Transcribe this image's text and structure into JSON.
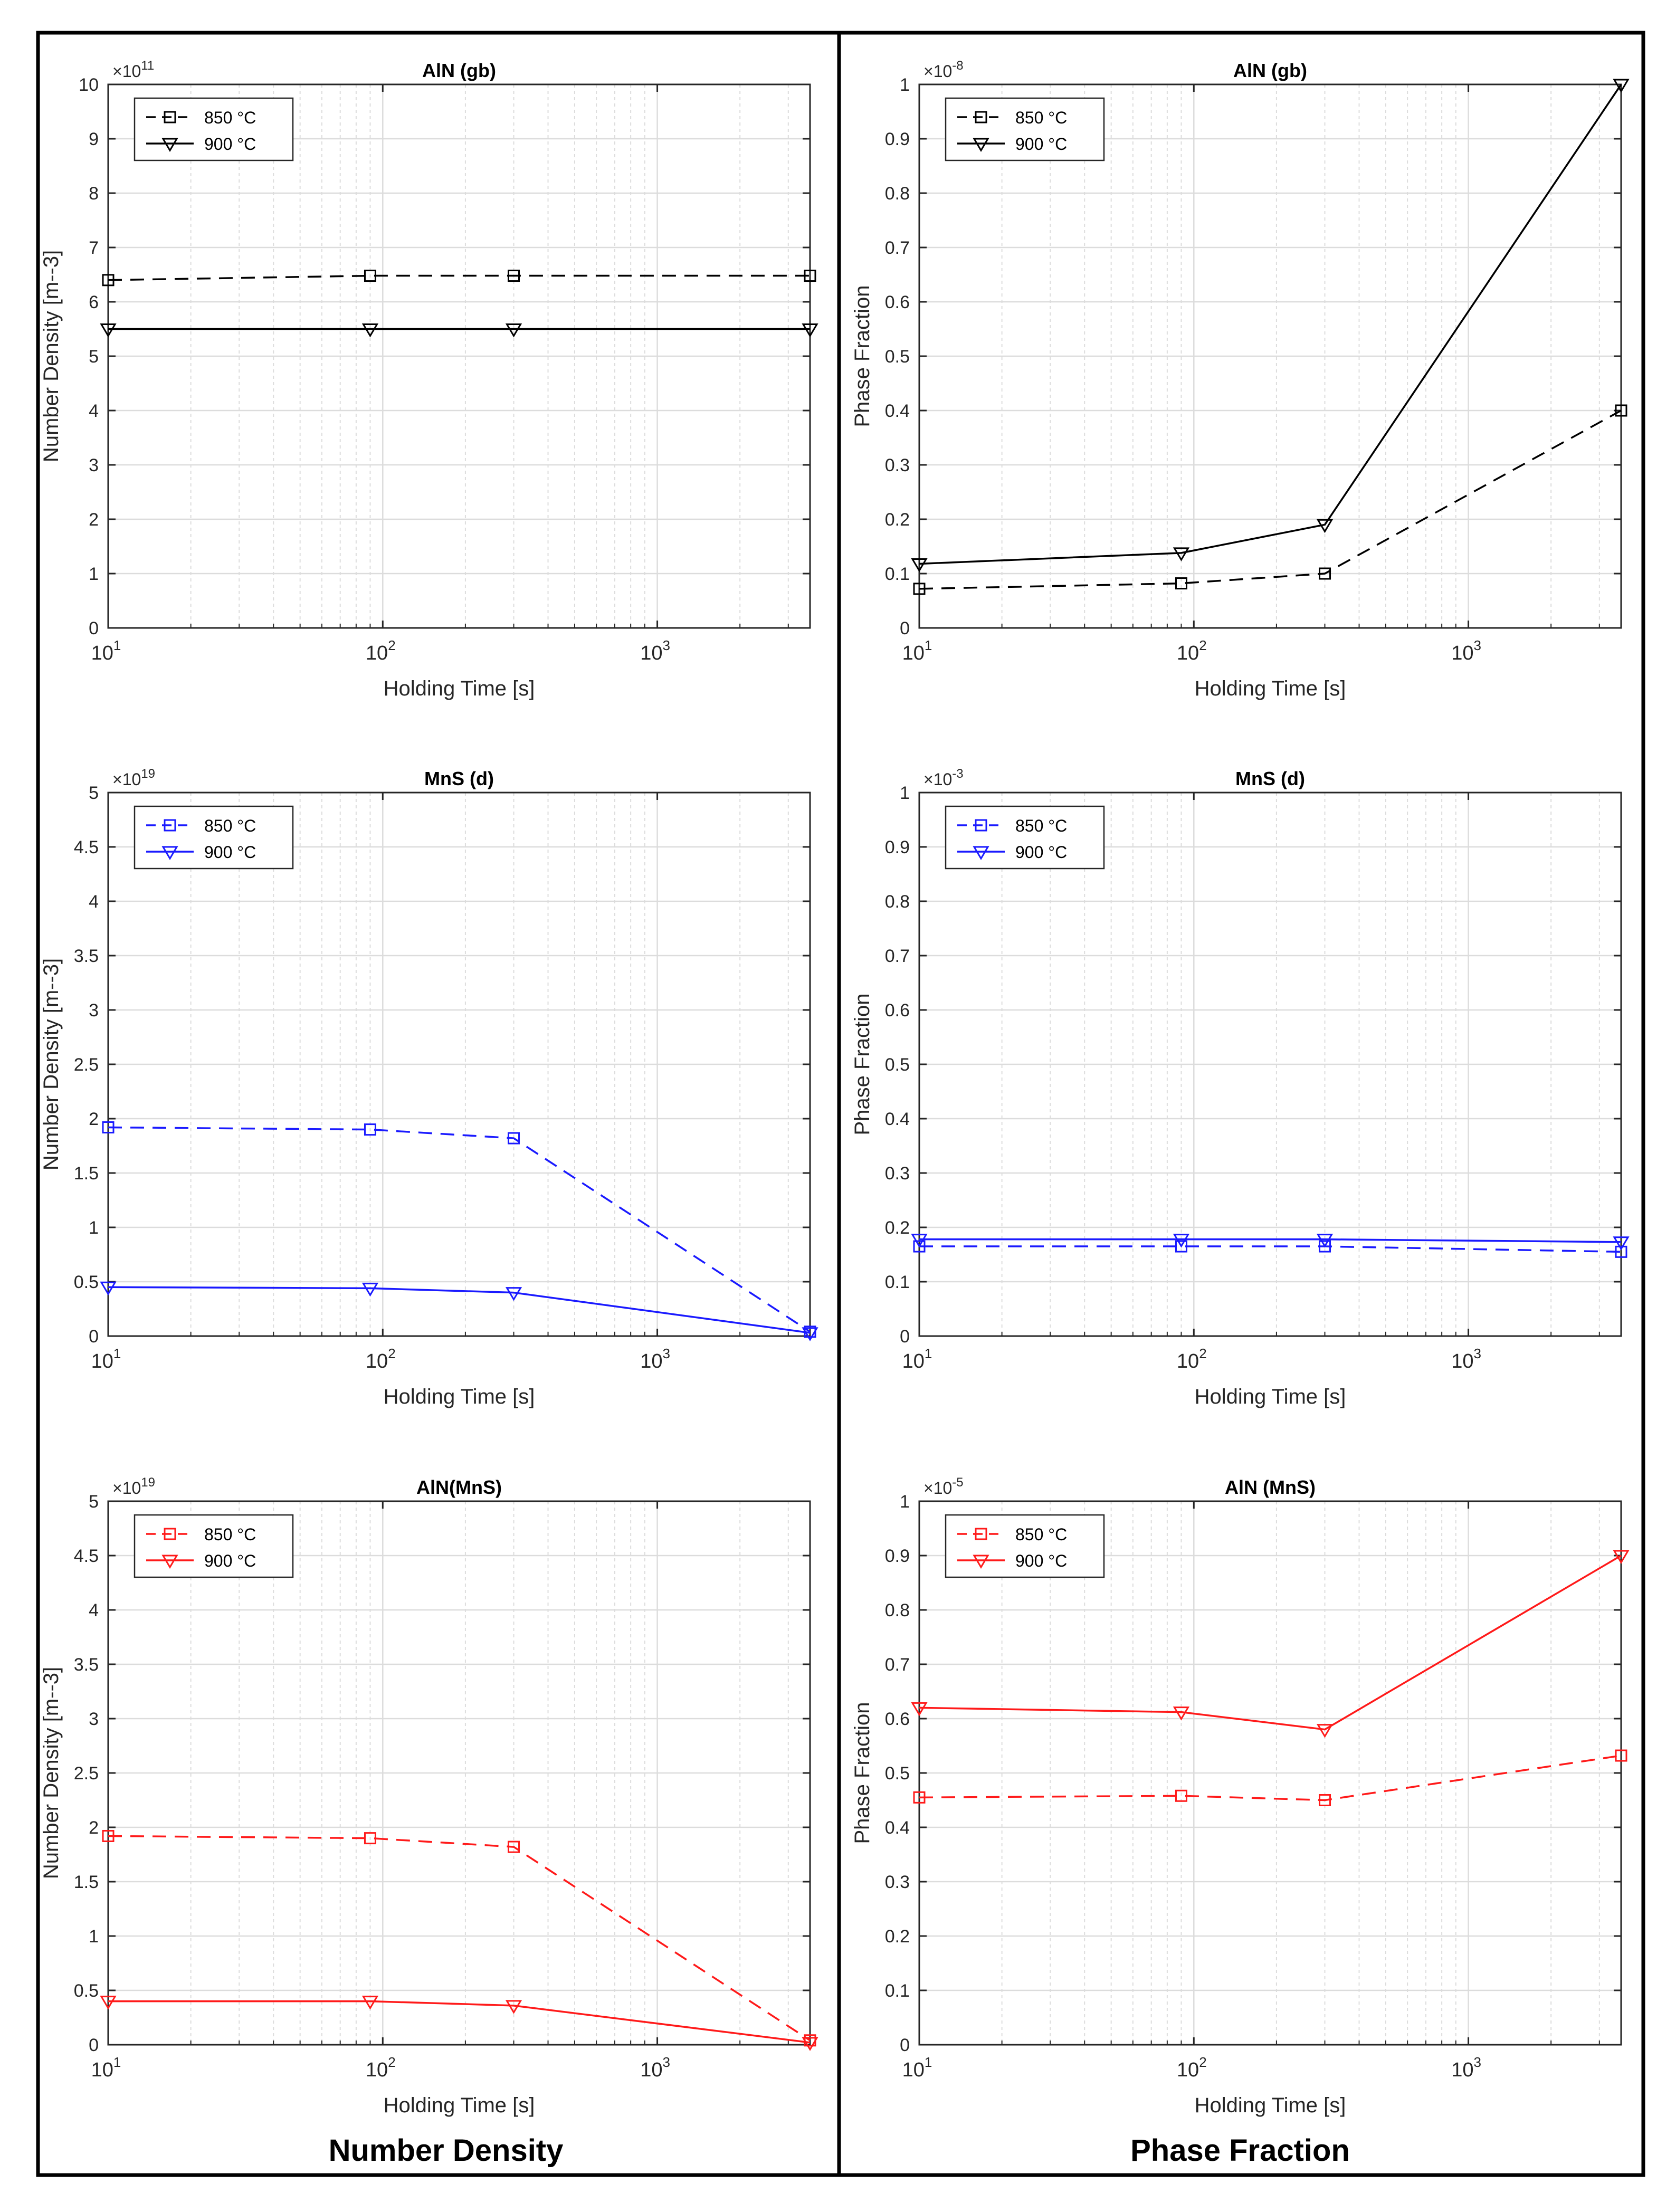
{
  "columns": [
    {
      "caption": "Number Density"
    },
    {
      "caption": "Phase Fraction"
    }
  ],
  "colors": {
    "black": "#000000",
    "blue": "#1a1aff",
    "red": "#ff1a1a",
    "grid": "#dcdcdc"
  },
  "chart_data": [
    {
      "type": "line",
      "title": "AlN (gb)",
      "xlabel": "Holding Time [s]",
      "ylabel": "Number Density [m--3]",
      "x_scale": "log",
      "xlim": [
        10,
        3600
      ],
      "ylim": [
        0,
        10
      ],
      "y_exponent": "×10",
      "y_exponent_power": "11",
      "x_ticks": [
        {
          "base": "10",
          "exp": "1",
          "value": 10
        },
        {
          "base": "10",
          "exp": "2",
          "value": 100
        },
        {
          "base": "10",
          "exp": "3",
          "value": 1000
        }
      ],
      "y_ticks": [
        "0",
        "1",
        "2",
        "3",
        "4",
        "5",
        "6",
        "7",
        "8",
        "9",
        "10"
      ],
      "color": "black",
      "legend": "top-left",
      "x": [
        10,
        90,
        300,
        3600
      ],
      "series": [
        {
          "name": "850 °C",
          "marker": "square",
          "dash": true,
          "values": [
            6.4,
            6.48,
            6.48,
            6.48
          ]
        },
        {
          "name": "900 °C",
          "marker": "triangle-down",
          "dash": false,
          "values": [
            5.5,
            5.5,
            5.5,
            5.5
          ]
        }
      ]
    },
    {
      "type": "line",
      "title": "AlN (gb)",
      "xlabel": "Holding Time [s]",
      "ylabel": "Phase Fraction",
      "x_scale": "log",
      "xlim": [
        10,
        3600
      ],
      "ylim": [
        0,
        1
      ],
      "y_exponent": "×10",
      "y_exponent_power": "-8",
      "x_ticks": [
        {
          "base": "10",
          "exp": "1",
          "value": 10
        },
        {
          "base": "10",
          "exp": "2",
          "value": 100
        },
        {
          "base": "10",
          "exp": "3",
          "value": 1000
        }
      ],
      "y_ticks": [
        "0",
        "0.1",
        "0.2",
        "0.3",
        "0.4",
        "0.5",
        "0.6",
        "0.7",
        "0.8",
        "0.9",
        "1"
      ],
      "color": "black",
      "legend": "top-left",
      "x": [
        10,
        90,
        300,
        3600
      ],
      "series": [
        {
          "name": "850 °C",
          "marker": "square",
          "dash": true,
          "values": [
            0.072,
            0.082,
            0.1,
            0.4
          ]
        },
        {
          "name": "900 °C",
          "marker": "triangle-down",
          "dash": false,
          "values": [
            0.118,
            0.138,
            0.19,
            1.0
          ]
        }
      ]
    },
    {
      "type": "line",
      "title": "MnS (d)",
      "xlabel": "Holding Time [s]",
      "ylabel": "Number Density [m--3]",
      "x_scale": "log",
      "xlim": [
        10,
        3600
      ],
      "ylim": [
        0,
        5
      ],
      "y_exponent": "×10",
      "y_exponent_power": "19",
      "x_ticks": [
        {
          "base": "10",
          "exp": "1",
          "value": 10
        },
        {
          "base": "10",
          "exp": "2",
          "value": 100
        },
        {
          "base": "10",
          "exp": "3",
          "value": 1000
        }
      ],
      "y_ticks": [
        "0",
        "0.5",
        "1",
        "1.5",
        "2",
        "2.5",
        "3",
        "3.5",
        "4",
        "4.5",
        "5"
      ],
      "color": "blue",
      "legend": "top-left",
      "x": [
        10,
        90,
        300,
        3600
      ],
      "series": [
        {
          "name": "850 °C",
          "marker": "square",
          "dash": true,
          "values": [
            1.92,
            1.9,
            1.82,
            0.04
          ]
        },
        {
          "name": "900 °C",
          "marker": "triangle-down",
          "dash": false,
          "values": [
            0.45,
            0.44,
            0.4,
            0.03
          ]
        }
      ]
    },
    {
      "type": "line",
      "title": "MnS (d)",
      "xlabel": "Holding Time [s]",
      "ylabel": "Phase Fraction",
      "x_scale": "log",
      "xlim": [
        10,
        3600
      ],
      "ylim": [
        0,
        1
      ],
      "y_exponent": "×10",
      "y_exponent_power": "-3",
      "x_ticks": [
        {
          "base": "10",
          "exp": "1",
          "value": 10
        },
        {
          "base": "10",
          "exp": "2",
          "value": 100
        },
        {
          "base": "10",
          "exp": "3",
          "value": 1000
        }
      ],
      "y_ticks": [
        "0",
        "0.1",
        "0.2",
        "0.3",
        "0.4",
        "0.5",
        "0.6",
        "0.7",
        "0.8",
        "0.9",
        "1"
      ],
      "color": "blue",
      "legend": "top-left",
      "x": [
        10,
        90,
        300,
        3600
      ],
      "series": [
        {
          "name": "850 °C",
          "marker": "square",
          "dash": true,
          "values": [
            0.165,
            0.165,
            0.165,
            0.155
          ]
        },
        {
          "name": "900 °C",
          "marker": "triangle-down",
          "dash": false,
          "values": [
            0.178,
            0.178,
            0.178,
            0.173
          ]
        }
      ]
    },
    {
      "type": "line",
      "title": "AlN(MnS)",
      "xlabel": "Holding Time [s]",
      "ylabel": "Number Density [m--3]",
      "x_scale": "log",
      "xlim": [
        10,
        3600
      ],
      "ylim": [
        0,
        5
      ],
      "y_exponent": "×10",
      "y_exponent_power": "19",
      "x_ticks": [
        {
          "base": "10",
          "exp": "1",
          "value": 10
        },
        {
          "base": "10",
          "exp": "2",
          "value": 100
        },
        {
          "base": "10",
          "exp": "3",
          "value": 1000
        }
      ],
      "y_ticks": [
        "0",
        "0.5",
        "1",
        "1.5",
        "2",
        "2.5",
        "3",
        "3.5",
        "4",
        "4.5",
        "5"
      ],
      "color": "red",
      "legend": "top-left",
      "x": [
        10,
        90,
        300,
        3600
      ],
      "series": [
        {
          "name": "850 °C",
          "marker": "square",
          "dash": true,
          "values": [
            1.92,
            1.9,
            1.82,
            0.04
          ]
        },
        {
          "name": "900 °C",
          "marker": "triangle-down",
          "dash": false,
          "values": [
            0.4,
            0.4,
            0.36,
            0.02
          ]
        }
      ]
    },
    {
      "type": "line",
      "title": "AlN (MnS)",
      "xlabel": "Holding Time [s]",
      "ylabel": "Phase Fraction",
      "x_scale": "log",
      "xlim": [
        10,
        3600
      ],
      "ylim": [
        0,
        1
      ],
      "y_exponent": "×10",
      "y_exponent_power": "-5",
      "x_ticks": [
        {
          "base": "10",
          "exp": "1",
          "value": 10
        },
        {
          "base": "10",
          "exp": "2",
          "value": 100
        },
        {
          "base": "10",
          "exp": "3",
          "value": 1000
        }
      ],
      "y_ticks": [
        "0",
        "0.1",
        "0.2",
        "0.3",
        "0.4",
        "0.5",
        "0.6",
        "0.7",
        "0.8",
        "0.9",
        "1"
      ],
      "color": "red",
      "legend": "top-left",
      "x": [
        10,
        90,
        300,
        3600
      ],
      "series": [
        {
          "name": "850 °C",
          "marker": "square",
          "dash": true,
          "values": [
            0.455,
            0.458,
            0.45,
            0.532
          ]
        },
        {
          "name": "900 °C",
          "marker": "triangle-down",
          "dash": false,
          "values": [
            0.62,
            0.612,
            0.58,
            0.9
          ]
        }
      ]
    }
  ]
}
